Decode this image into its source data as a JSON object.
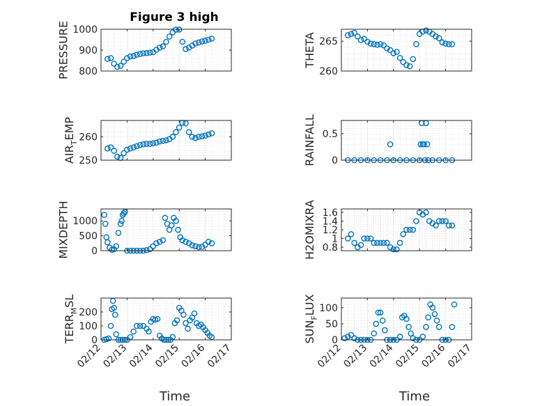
{
  "figure": {
    "title": "Figure 3 high"
  },
  "xlabel": "Time",
  "x_ticks": [
    "02/12",
    "02/13",
    "02/14",
    "02/15",
    "02/16",
    "02/17"
  ],
  "chart_data": [
    {
      "type": "scatter",
      "id": "pressure",
      "ylabel": "PRESSURE",
      "ylim": [
        800,
        1000
      ],
      "yticks": [
        800,
        900,
        1000
      ],
      "ytick_labels": [
        "800",
        "900",
        "1000"
      ],
      "grid": true,
      "marker_color": "#0072BD",
      "x": [
        "02/12 06:00",
        "02/12 09:00",
        "02/12 12:00",
        "02/12 15:00",
        "02/12 18:00",
        "02/12 21:00",
        "02/13 00:00",
        "02/13 03:00",
        "02/13 06:00",
        "02/13 09:00",
        "02/13 12:00",
        "02/13 15:00",
        "02/13 18:00",
        "02/13 21:00",
        "02/14 00:00",
        "02/14 03:00",
        "02/14 06:00",
        "02/14 09:00",
        "02/14 12:00",
        "02/14 15:00",
        "02/14 18:00",
        "02/14 21:00",
        "02/15 00:00",
        "02/15 03:00",
        "02/15 06:00",
        "02/15 09:00",
        "02/15 12:00",
        "02/15 15:00",
        "02/15 18:00",
        "02/15 21:00",
        "02/16 00:00",
        "02/16 03:00",
        "02/16 06:00"
      ],
      "y": [
        858,
        862,
        835,
        820,
        825,
        845,
        862,
        870,
        872,
        878,
        882,
        885,
        886,
        888,
        890,
        902,
        912,
        918,
        940,
        965,
        985,
        998,
        998,
        940,
        905,
        912,
        922,
        932,
        937,
        942,
        945,
        950,
        955
      ]
    },
    {
      "type": "scatter",
      "id": "theta",
      "ylabel": "THETA",
      "ylim": [
        260,
        267
      ],
      "yticks": [
        260,
        265
      ],
      "ytick_labels": [
        "260",
        "265"
      ],
      "grid": true,
      "marker_color": "#0072BD",
      "x": [
        "02/12 06:00",
        "02/12 09:00",
        "02/12 12:00",
        "02/12 15:00",
        "02/12 18:00",
        "02/12 21:00",
        "02/13 00:00",
        "02/13 03:00",
        "02/13 06:00",
        "02/13 09:00",
        "02/13 12:00",
        "02/13 15:00",
        "02/13 18:00",
        "02/13 21:00",
        "02/14 00:00",
        "02/14 03:00",
        "02/14 06:00",
        "02/14 09:00",
        "02/14 12:00",
        "02/14 15:00",
        "02/14 18:00",
        "02/14 21:00",
        "02/15 00:00",
        "02/15 03:00",
        "02/15 06:00",
        "02/15 09:00",
        "02/15 12:00",
        "02/15 15:00",
        "02/15 18:00",
        "02/15 21:00",
        "02/16 00:00",
        "02/16 03:00",
        "02/16 06:00"
      ],
      "y": [
        266.0,
        266.2,
        266.4,
        265.8,
        265.2,
        265.4,
        264.9,
        264.6,
        264.5,
        264.4,
        264.5,
        264.3,
        263.8,
        263.5,
        263.0,
        263.2,
        262.2,
        261.5,
        261.0,
        260.8,
        262.0,
        264.5,
        266.2,
        266.6,
        266.8,
        266.6,
        266.2,
        265.8,
        265.5,
        264.8,
        264.6,
        264.5,
        264.5
      ]
    },
    {
      "type": "scatter",
      "id": "air_temp",
      "ylabel": "AIR",
      "ylabel_sub": "T",
      "ylabel_rest": "EMP",
      "ylim": [
        250,
        267
      ],
      "yticks": [
        250,
        260
      ],
      "ytick_labels": [
        "250",
        "260"
      ],
      "grid": true,
      "marker_color": "#0072BD",
      "x": [
        "02/12 06:00",
        "02/12 09:00",
        "02/12 12:00",
        "02/12 15:00",
        "02/12 18:00",
        "02/12 21:00",
        "02/13 00:00",
        "02/13 03:00",
        "02/13 06:00",
        "02/13 09:00",
        "02/13 12:00",
        "02/13 15:00",
        "02/13 18:00",
        "02/13 21:00",
        "02/14 00:00",
        "02/14 03:00",
        "02/14 06:00",
        "02/14 09:00",
        "02/14 12:00",
        "02/14 15:00",
        "02/14 18:00",
        "02/14 21:00",
        "02/15 00:00",
        "02/15 03:00",
        "02/15 06:00",
        "02/15 09:00",
        "02/15 12:00",
        "02/15 15:00",
        "02/15 18:00",
        "02/15 21:00",
        "02/16 00:00",
        "02/16 03:00",
        "02/16 06:00"
      ],
      "y": [
        255,
        255.5,
        254,
        251.5,
        251,
        253,
        254.5,
        255,
        255.5,
        256,
        256.5,
        256.8,
        257,
        257,
        257.2,
        257.5,
        258,
        258.3,
        258.5,
        259,
        260,
        262,
        264,
        266,
        265.8,
        262,
        260,
        259.5,
        260,
        260.2,
        260.5,
        261,
        261.5
      ]
    },
    {
      "type": "scatter",
      "id": "rainfall",
      "ylabel": "RAINFALL",
      "ylim": [
        0,
        0.75
      ],
      "yticks": [
        0,
        0.5
      ],
      "ytick_labels": [
        "0",
        "0.5"
      ],
      "grid": true,
      "marker_color": "#0072BD",
      "x": [
        "02/12 06:00",
        "02/12 12:00",
        "02/12 18:00",
        "02/13 00:00",
        "02/13 06:00",
        "02/13 12:00",
        "02/13 18:00",
        "02/14 00:00",
        "02/14 06:00",
        "02/14 12:00",
        "02/14 18:00",
        "02/15 00:00",
        "02/15 02:00",
        "02/15 04:00",
        "02/15 06:00",
        "02/15 08:00",
        "02/15 12:00",
        "02/15 18:00",
        "02/16 00:00",
        "02/16 06:00",
        "02/13 21:00",
        "02/15 01:00",
        "02/15 03:00",
        "02/15 05:00",
        "02/15 07:00"
      ],
      "y": [
        0,
        0,
        0,
        0,
        0,
        0,
        0,
        0,
        0,
        0,
        0,
        0,
        0.7,
        0.3,
        0.7,
        0,
        0,
        0,
        0,
        0,
        0.3,
        0.3,
        0.3,
        0,
        0.3
      ]
    },
    {
      "type": "scatter",
      "id": "mixdepth",
      "ylabel": "MIXDEPTH",
      "ylim": [
        0,
        1400
      ],
      "yticks": [
        0,
        500,
        1000
      ],
      "ytick_labels": [
        "0",
        "500",
        "1000"
      ],
      "grid": true,
      "marker_color": "#0072BD",
      "x": [
        "02/12 03:00",
        "02/12 04:00",
        "02/12 05:00",
        "02/12 06:00",
        "02/12 08:00",
        "02/12 10:00",
        "02/12 12:00",
        "02/12 14:00",
        "02/12 16:00",
        "02/12 18:00",
        "02/12 19:00",
        "02/12 20:00",
        "02/12 21:00",
        "02/12 22:00",
        "02/13 00:00",
        "02/13 03:00",
        "02/13 06:00",
        "02/13 09:00",
        "02/13 12:00",
        "02/13 15:00",
        "02/13 18:00",
        "02/13 21:00",
        "02/14 00:00",
        "02/14 03:00",
        "02/14 06:00",
        "02/14 09:00",
        "02/14 11:00",
        "02/14 13:00",
        "02/14 15:00",
        "02/14 17:00",
        "02/14 19:00",
        "02/14 21:00",
        "02/14 23:00",
        "02/15 01:00",
        "02/15 03:00",
        "02/15 06:00",
        "02/15 09:00",
        "02/15 12:00",
        "02/15 15:00",
        "02/15 18:00",
        "02/15 21:00",
        "02/16 00:00",
        "02/16 03:00",
        "02/16 06:00"
      ],
      "y": [
        1200,
        900,
        450,
        280,
        100,
        30,
        50,
        150,
        600,
        900,
        1000,
        1200,
        1250,
        1300,
        0,
        0,
        0,
        0,
        0,
        0,
        20,
        50,
        150,
        250,
        300,
        350,
        1100,
        900,
        700,
        850,
        1100,
        1000,
        700,
        450,
        350,
        300,
        250,
        180,
        150,
        120,
        130,
        200,
        300,
        250
      ]
    },
    {
      "type": "scatter",
      "id": "h2omixra",
      "ylabel": "H2OMIXRA",
      "ylim": [
        0.72,
        1.68
      ],
      "yticks": [
        0.8,
        1,
        1.2,
        1.4,
        1.6
      ],
      "ytick_labels": [
        "0.8",
        "1",
        "1.2",
        "1.4",
        "1.6"
      ],
      "grid": true,
      "marker_color": "#0072BD",
      "x": [
        "02/12 06:00",
        "02/12 09:00",
        "02/12 12:00",
        "02/12 15:00",
        "02/12 18:00",
        "02/12 21:00",
        "02/13 00:00",
        "02/13 03:00",
        "02/13 06:00",
        "02/13 09:00",
        "02/13 12:00",
        "02/13 15:00",
        "02/13 18:00",
        "02/13 21:00",
        "02/14 00:00",
        "02/14 03:00",
        "02/14 06:00",
        "02/14 09:00",
        "02/14 12:00",
        "02/14 15:00",
        "02/14 18:00",
        "02/14 21:00",
        "02/15 00:00",
        "02/15 03:00",
        "02/15 06:00",
        "02/15 09:00",
        "02/15 12:00",
        "02/15 15:00",
        "02/15 18:00",
        "02/15 21:00",
        "02/16 00:00",
        "02/16 03:00",
        "02/16 06:00"
      ],
      "y": [
        1.0,
        1.1,
        0.9,
        0.8,
        0.85,
        1.0,
        1.0,
        1.0,
        0.9,
        0.9,
        0.9,
        0.9,
        0.9,
        0.8,
        0.75,
        0.75,
        0.9,
        1.1,
        1.2,
        1.2,
        1.2,
        1.4,
        1.6,
        1.55,
        1.6,
        1.4,
        1.35,
        1.3,
        1.4,
        1.4,
        1.4,
        1.3,
        1.3
      ]
    },
    {
      "type": "scatter",
      "id": "terr_msl",
      "ylabel": "TERR",
      "ylabel_sub": "M",
      "ylabel_rest": "SL",
      "ylim": [
        0,
        300
      ],
      "yticks": [
        0,
        100,
        200
      ],
      "ytick_labels": [
        "0",
        "100",
        "200"
      ],
      "grid": true,
      "marker_color": "#0072BD",
      "x": [
        "02/12 03:00",
        "02/12 05:00",
        "02/12 07:00",
        "02/12 09:00",
        "02/12 10:00",
        "02/12 11:00",
        "02/12 12:00",
        "02/12 13:00",
        "02/12 14:00",
        "02/12 16:00",
        "02/12 18:00",
        "02/12 20:00",
        "02/12 22:00",
        "02/13 00:00",
        "02/13 03:00",
        "02/13 06:00",
        "02/13 09:00",
        "02/13 12:00",
        "02/13 15:00",
        "02/13 18:00",
        "02/13 20:00",
        "02/13 22:00",
        "02/14 00:00",
        "02/14 02:00",
        "02/14 04:00",
        "02/14 06:00",
        "02/14 08:00",
        "02/14 10:00",
        "02/14 12:00",
        "02/14 14:00",
        "02/14 16:00",
        "02/14 18:00",
        "02/14 20:00",
        "02/14 22:00",
        "02/15 00:00",
        "02/15 02:00",
        "02/15 04:00",
        "02/15 06:00",
        "02/15 08:00",
        "02/15 10:00",
        "02/15 12:00",
        "02/15 14:00",
        "02/15 16:00",
        "02/15 18:00",
        "02/15 20:00",
        "02/15 22:00",
        "02/16 00:00",
        "02/16 02:00",
        "02/16 04:00",
        "02/16 06:00"
      ],
      "y": [
        0,
        5,
        10,
        100,
        220,
        280,
        230,
        180,
        40,
        0,
        0,
        0,
        0,
        0,
        20,
        60,
        100,
        100,
        100,
        80,
        60,
        130,
        150,
        145,
        150,
        30,
        10,
        0,
        0,
        0,
        0,
        20,
        120,
        140,
        230,
        210,
        180,
        120,
        80,
        140,
        160,
        190,
        120,
        100,
        110,
        90,
        70,
        50,
        30,
        20
      ]
    },
    {
      "type": "scatter",
      "id": "sun_flux",
      "ylabel": "SUN",
      "ylabel_sub": "F",
      "ylabel_rest": "LUX",
      "ylim": [
        0,
        130
      ],
      "yticks": [
        0,
        50,
        100
      ],
      "ytick_labels": [
        "0",
        "50",
        "100"
      ],
      "grid": true,
      "marker_color": "#0072BD",
      "x": [
        "02/12 03:00",
        "02/12 06:00",
        "02/12 09:00",
        "02/12 12:00",
        "02/12 15:00",
        "02/12 18:00",
        "02/12 21:00",
        "02/13 00:00",
        "02/13 03:00",
        "02/13 06:00",
        "02/13 08:00",
        "02/13 10:00",
        "02/13 12:00",
        "02/13 14:00",
        "02/13 16:00",
        "02/13 18:00",
        "02/13 21:00",
        "02/14 00:00",
        "02/14 03:00",
        "02/14 06:00",
        "02/14 08:00",
        "02/14 10:00",
        "02/14 12:00",
        "02/14 14:00",
        "02/14 16:00",
        "02/14 18:00",
        "02/14 21:00",
        "02/15 00:00",
        "02/15 03:00",
        "02/15 06:00",
        "02/15 08:00",
        "02/15 10:00",
        "02/15 12:00",
        "02/15 14:00",
        "02/15 16:00",
        "02/15 18:00",
        "02/15 21:00",
        "02/16 00:00",
        "02/16 03:00",
        "02/16 06:00",
        "02/16 08:00"
      ],
      "y": [
        5,
        10,
        15,
        5,
        0,
        0,
        0,
        0,
        0,
        20,
        50,
        85,
        85,
        60,
        30,
        0,
        0,
        0,
        0,
        10,
        70,
        75,
        65,
        40,
        20,
        5,
        0,
        0,
        10,
        40,
        70,
        110,
        100,
        80,
        60,
        40,
        0,
        0,
        0,
        40,
        110
      ]
    }
  ]
}
